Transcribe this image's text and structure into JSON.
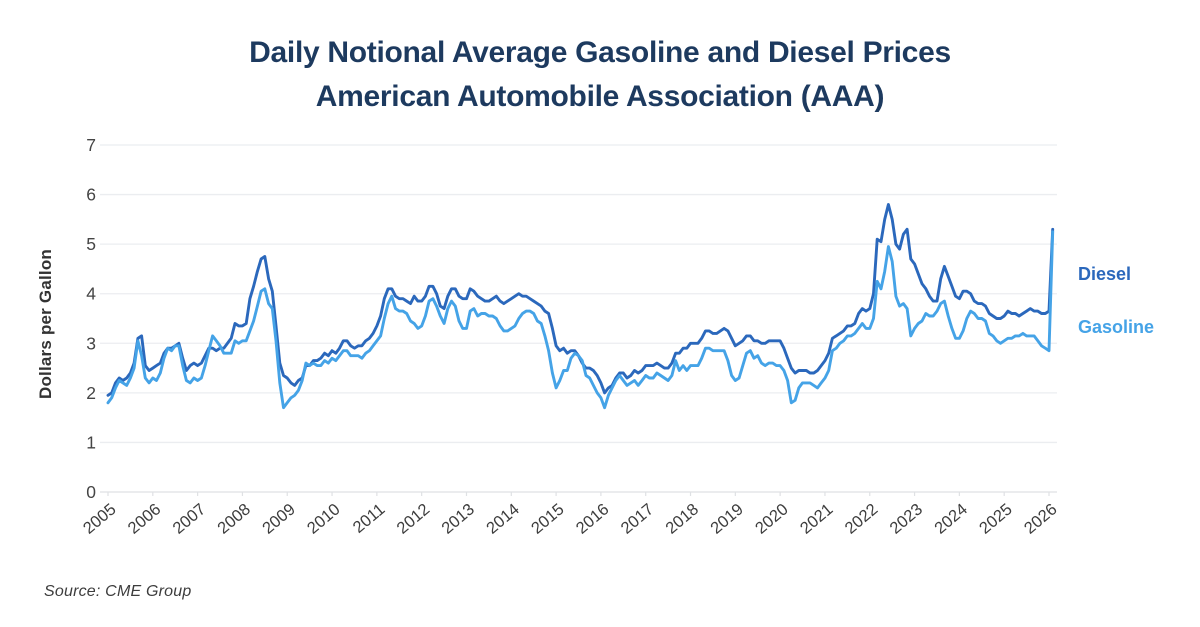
{
  "title": {
    "line1": "Daily Notional Average Gasoline and Diesel Prices",
    "line2": "American Automobile Association (AAA)"
  },
  "source": "Source: CME Group",
  "chart_data": {
    "type": "line",
    "title": "Daily Notional Average Gasoline and Diesel Prices — American Automobile Association (AAA)",
    "xlabel": "",
    "ylabel": "Dollars per Gallon",
    "ylim": [
      0,
      7
    ],
    "y_ticks": [
      0,
      1,
      2,
      3,
      4,
      5,
      6,
      7
    ],
    "x_ticks": [
      2005,
      2006,
      2007,
      2008,
      2009,
      2010,
      2011,
      2012,
      2013,
      2014,
      2015,
      2016,
      2017,
      2018,
      2019,
      2020,
      2021,
      2022,
      2023,
      2024,
      2025,
      2026
    ],
    "grid": "horizontal",
    "legend_position": "right",
    "x_start_year": 2005,
    "interval_months": 1,
    "grid_color": "#ebedf0",
    "baseline_color": "#dfe1e4",
    "tick_label_color": "#454545",
    "series": [
      {
        "name": "Diesel",
        "color": "#2b68bc",
        "values": [
          1.95,
          2.0,
          2.2,
          2.3,
          2.25,
          2.3,
          2.4,
          2.6,
          3.1,
          3.15,
          2.55,
          2.45,
          2.5,
          2.55,
          2.6,
          2.8,
          2.9,
          2.9,
          2.95,
          3.0,
          2.7,
          2.45,
          2.55,
          2.6,
          2.55,
          2.6,
          2.75,
          2.9,
          2.9,
          2.85,
          2.9,
          2.9,
          3.0,
          3.1,
          3.4,
          3.35,
          3.35,
          3.4,
          3.9,
          4.15,
          4.45,
          4.7,
          4.75,
          4.3,
          4.05,
          3.35,
          2.6,
          2.35,
          2.3,
          2.2,
          2.15,
          2.25,
          2.3,
          2.55,
          2.55,
          2.65,
          2.65,
          2.7,
          2.8,
          2.75,
          2.85,
          2.8,
          2.9,
          3.05,
          3.05,
          2.95,
          2.9,
          2.95,
          2.95,
          3.05,
          3.1,
          3.2,
          3.35,
          3.55,
          3.9,
          4.1,
          4.1,
          3.95,
          3.9,
          3.9,
          3.85,
          3.8,
          3.95,
          3.85,
          3.85,
          3.95,
          4.15,
          4.15,
          4.0,
          3.75,
          3.7,
          3.95,
          4.1,
          4.1,
          3.95,
          3.9,
          3.9,
          4.1,
          4.05,
          3.95,
          3.9,
          3.85,
          3.85,
          3.9,
          3.95,
          3.85,
          3.8,
          3.85,
          3.9,
          3.95,
          4.0,
          3.95,
          3.95,
          3.9,
          3.85,
          3.8,
          3.75,
          3.65,
          3.6,
          3.3,
          2.95,
          2.85,
          2.9,
          2.8,
          2.85,
          2.85,
          2.75,
          2.6,
          2.5,
          2.5,
          2.45,
          2.35,
          2.2,
          2.0,
          2.1,
          2.15,
          2.3,
          2.4,
          2.4,
          2.3,
          2.35,
          2.45,
          2.4,
          2.45,
          2.55,
          2.55,
          2.55,
          2.6,
          2.55,
          2.5,
          2.5,
          2.6,
          2.8,
          2.8,
          2.9,
          2.9,
          3.0,
          3.0,
          3.0,
          3.1,
          3.25,
          3.25,
          3.2,
          3.2,
          3.25,
          3.3,
          3.25,
          3.1,
          2.95,
          3.0,
          3.05,
          3.15,
          3.15,
          3.05,
          3.05,
          3.0,
          3.0,
          3.05,
          3.05,
          3.05,
          3.05,
          2.9,
          2.7,
          2.5,
          2.4,
          2.45,
          2.45,
          2.45,
          2.4,
          2.4,
          2.45,
          2.55,
          2.65,
          2.8,
          3.1,
          3.15,
          3.2,
          3.25,
          3.35,
          3.35,
          3.4,
          3.6,
          3.7,
          3.65,
          3.7,
          4.0,
          5.1,
          5.05,
          5.5,
          5.8,
          5.5,
          5.0,
          4.9,
          5.2,
          5.3,
          4.7,
          4.6,
          4.4,
          4.2,
          4.1,
          3.95,
          3.85,
          3.85,
          4.3,
          4.55,
          4.35,
          4.15,
          3.95,
          3.9,
          4.05,
          4.05,
          4.0,
          3.85,
          3.8,
          3.8,
          3.75,
          3.6,
          3.55,
          3.5,
          3.5,
          3.55,
          3.65,
          3.6,
          3.6,
          3.55,
          3.6,
          3.65,
          3.7,
          3.65,
          3.65,
          3.6,
          3.6,
          3.65,
          5.3
        ]
      },
      {
        "name": "Gasoline",
        "color": "#45a3e7",
        "values": [
          1.8,
          1.9,
          2.1,
          2.25,
          2.2,
          2.15,
          2.3,
          2.5,
          3.05,
          2.75,
          2.3,
          2.2,
          2.3,
          2.25,
          2.4,
          2.7,
          2.9,
          2.85,
          2.95,
          2.95,
          2.55,
          2.25,
          2.2,
          2.3,
          2.25,
          2.3,
          2.55,
          2.85,
          3.15,
          3.05,
          2.95,
          2.8,
          2.8,
          2.8,
          3.05,
          3.0,
          3.05,
          3.05,
          3.25,
          3.45,
          3.75,
          4.05,
          4.1,
          3.8,
          3.7,
          3.05,
          2.2,
          1.7,
          1.8,
          1.9,
          1.95,
          2.05,
          2.25,
          2.6,
          2.55,
          2.6,
          2.55,
          2.55,
          2.65,
          2.6,
          2.7,
          2.65,
          2.75,
          2.85,
          2.85,
          2.75,
          2.75,
          2.75,
          2.7,
          2.8,
          2.85,
          2.95,
          3.05,
          3.15,
          3.5,
          3.8,
          3.95,
          3.7,
          3.65,
          3.65,
          3.6,
          3.45,
          3.4,
          3.3,
          3.35,
          3.55,
          3.85,
          3.9,
          3.75,
          3.55,
          3.4,
          3.7,
          3.85,
          3.75,
          3.45,
          3.3,
          3.3,
          3.65,
          3.7,
          3.55,
          3.6,
          3.6,
          3.55,
          3.55,
          3.5,
          3.35,
          3.25,
          3.25,
          3.3,
          3.35,
          3.5,
          3.6,
          3.65,
          3.65,
          3.6,
          3.45,
          3.4,
          3.15,
          2.85,
          2.4,
          2.1,
          2.25,
          2.45,
          2.45,
          2.7,
          2.8,
          2.75,
          2.65,
          2.35,
          2.3,
          2.15,
          2.0,
          1.9,
          1.7,
          1.95,
          2.1,
          2.25,
          2.35,
          2.25,
          2.15,
          2.2,
          2.25,
          2.15,
          2.25,
          2.35,
          2.3,
          2.3,
          2.4,
          2.35,
          2.3,
          2.25,
          2.35,
          2.65,
          2.45,
          2.55,
          2.45,
          2.55,
          2.55,
          2.55,
          2.7,
          2.9,
          2.9,
          2.85,
          2.85,
          2.85,
          2.85,
          2.65,
          2.35,
          2.25,
          2.3,
          2.55,
          2.8,
          2.85,
          2.7,
          2.75,
          2.6,
          2.55,
          2.6,
          2.6,
          2.55,
          2.55,
          2.45,
          2.25,
          1.8,
          1.85,
          2.1,
          2.2,
          2.2,
          2.2,
          2.15,
          2.1,
          2.2,
          2.3,
          2.45,
          2.85,
          2.9,
          3.0,
          3.05,
          3.15,
          3.15,
          3.2,
          3.3,
          3.4,
          3.3,
          3.3,
          3.5,
          4.25,
          4.1,
          4.45,
          4.95,
          4.65,
          3.95,
          3.75,
          3.8,
          3.7,
          3.15,
          3.3,
          3.4,
          3.45,
          3.6,
          3.55,
          3.55,
          3.65,
          3.8,
          3.85,
          3.55,
          3.3,
          3.1,
          3.1,
          3.25,
          3.5,
          3.65,
          3.6,
          3.5,
          3.5,
          3.45,
          3.2,
          3.15,
          3.05,
          3.0,
          3.05,
          3.1,
          3.1,
          3.15,
          3.15,
          3.2,
          3.15,
          3.15,
          3.15,
          3.05,
          2.95,
          2.9,
          2.85,
          5.25
        ]
      }
    ]
  }
}
